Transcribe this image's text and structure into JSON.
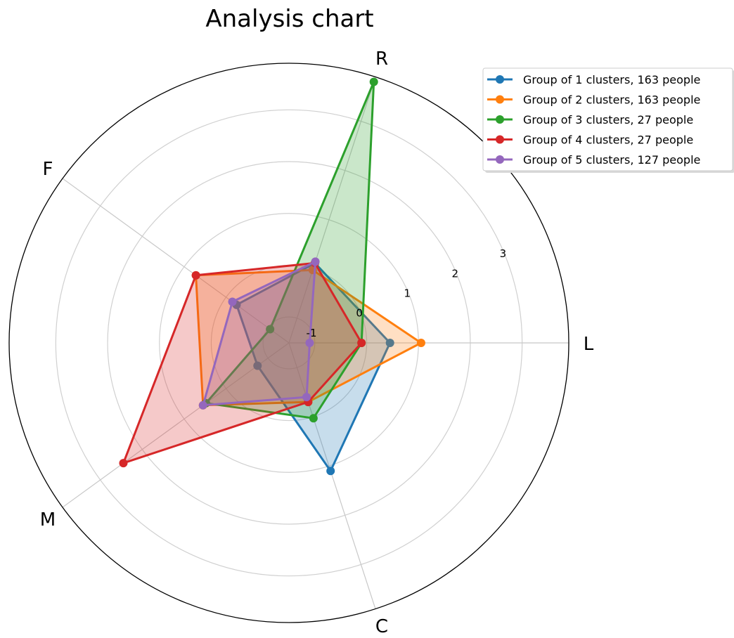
{
  "chart_data": {
    "type": "radar",
    "title": "Analysis chart",
    "axes": [
      "L",
      "R",
      "F",
      "M",
      "C"
    ],
    "rlim": [
      -1.5,
      3.9
    ],
    "rticks": [
      -1,
      0,
      1,
      2,
      3
    ],
    "rtick_labels": [
      "-1",
      "0",
      "1",
      "2",
      "3"
    ],
    "grid": true,
    "legend_position": "top-right",
    "series": [
      {
        "name": "Group of 1 clusters, 163 people",
        "color": "#1f77b4",
        "values": {
          "L": 0.45,
          "R": 0.12,
          "F": -0.25,
          "M": -0.75,
          "C": 1.1
        }
      },
      {
        "name": "Group of 2 clusters, 163 people",
        "color": "#ff7f0e",
        "values": {
          "L": 1.05,
          "R": -0.02,
          "F": 0.72,
          "M": 0.55,
          "C": -0.3
        }
      },
      {
        "name": "Group of 3 clusters, 27 people",
        "color": "#2ca02c",
        "values": {
          "L": -0.1,
          "R": 3.8,
          "F": -1.05,
          "M": 0.48,
          "C": 0.03
        }
      },
      {
        "name": "Group of 4 clusters, 27 people",
        "color": "#d62728",
        "values": {
          "L": -0.1,
          "R": 0.12,
          "F": 0.72,
          "M": 2.45,
          "C": -0.3
        }
      },
      {
        "name": "Group of 5 clusters, 127 people",
        "color": "#9467bd",
        "values": {
          "L": -1.1,
          "R": 0.15,
          "F": -0.15,
          "M": 0.55,
          "C": -0.4
        }
      }
    ]
  }
}
